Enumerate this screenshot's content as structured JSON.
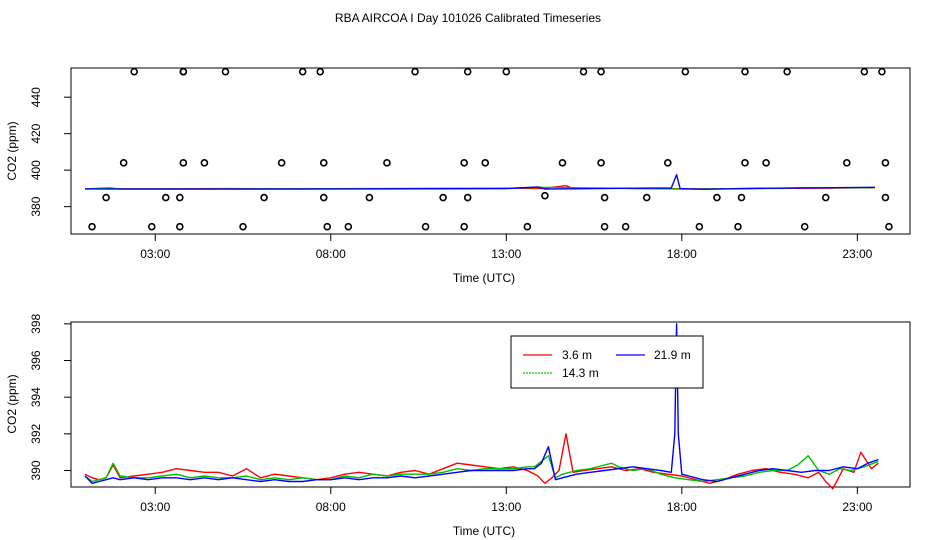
{
  "title": "RBA AIRCOA I  Day 101026  Calibrated Timeseries",
  "colors": {
    "height_3_6": "#ff0000",
    "height_14_3": "#00c000",
    "height_21_9": "#0000ff",
    "markers": "#000000",
    "background": "#ffffff"
  },
  "chart_data": [
    {
      "type": "line",
      "title": "",
      "xlabel": "Time (UTC)",
      "ylabel": "CO2 (ppm)",
      "x_unit": "hours (UTC)",
      "xlim": [
        0.6,
        24.5
      ],
      "ylim": [
        365,
        456
      ],
      "xticks": [
        3,
        8,
        13,
        18,
        23
      ],
      "xtick_labels": [
        "03:00",
        "08:00",
        "13:00",
        "18:00",
        "23:00"
      ],
      "yticks": [
        380,
        400,
        420,
        440
      ],
      "ytick_labels": [
        "380",
        "400",
        "420",
        "440"
      ],
      "grid": false,
      "legend": "none",
      "series": [
        {
          "color": "#ff0000",
          "x": [
            1,
            3,
            5,
            7,
            9,
            11,
            13,
            14.0,
            14.7,
            14.9,
            16,
            17.5,
            18.6,
            20,
            22,
            23.5
          ],
          "y": [
            389.8,
            389.8,
            389.9,
            389.8,
            389.9,
            390.0,
            390.1,
            389.9,
            391.5,
            390.0,
            390.1,
            389.9,
            389.7,
            390.0,
            390.1,
            390.4
          ]
        },
        {
          "color": "#00c000",
          "x": [
            1,
            1.7,
            2,
            5,
            9,
            13,
            14.0,
            16,
            18,
            20,
            21.5,
            23.5
          ],
          "y": [
            389.7,
            390.3,
            389.7,
            389.7,
            389.8,
            390.0,
            390.6,
            390.1,
            389.6,
            389.9,
            390.3,
            390.4
          ]
        },
        {
          "color": "#0000ff",
          "x": [
            1,
            3,
            5,
            9,
            13,
            13.9,
            14.1,
            16,
            17.7,
            17.85,
            17.95,
            18.6,
            20,
            23.5
          ],
          "y": [
            389.7,
            389.6,
            389.6,
            389.7,
            389.9,
            390.8,
            389.6,
            390.0,
            390.2,
            397.5,
            389.9,
            389.5,
            390.0,
            390.6
          ]
        },
        {
          "name": "markers",
          "style": "open circles",
          "color": "#000000",
          "x": [
            1.2,
            1.6,
            2.1,
            2.4,
            2.9,
            3.3,
            3.7,
            3.7,
            3.8,
            3.8,
            3.8,
            4.4,
            5.0,
            5.5,
            6.1,
            6.6,
            7.2,
            7.7,
            7.8,
            7.8,
            7.9,
            8.5,
            9.1,
            9.6,
            10.4,
            10.7,
            11.2,
            11.8,
            11.8,
            11.9,
            11.9,
            12.4,
            13.0,
            13.6,
            14.1,
            14.6,
            15.2,
            15.7,
            15.7,
            15.8,
            15.8,
            16.4,
            17.0,
            17.6,
            18.1,
            18.5,
            19.0,
            19.6,
            19.7,
            19.8,
            19.8,
            20.4,
            21.0,
            21.5,
            22.1,
            22.7,
            23.2,
            23.7,
            23.8,
            23.8,
            23.9
          ],
          "y": [
            369,
            385,
            404,
            454,
            369,
            385,
            369,
            385,
            404,
            454,
            454,
            404,
            454,
            369,
            385,
            404,
            454,
            454,
            404,
            385,
            369,
            369,
            385,
            404,
            454,
            369,
            385,
            404,
            369,
            385,
            454,
            404,
            454,
            369,
            386,
            404,
            454,
            454,
            404,
            385,
            369,
            369,
            385,
            404,
            454,
            369,
            385,
            369,
            385,
            404,
            454,
            404,
            454,
            369,
            385,
            404,
            454,
            454,
            404,
            385,
            369
          ]
        }
      ]
    },
    {
      "type": "line",
      "title": "",
      "xlabel": "Time (UTC)",
      "ylabel": "CO2 (ppm)",
      "x_unit": "hours (UTC)",
      "xlim": [
        0.6,
        24.5
      ],
      "ylim": [
        389.1,
        398.1
      ],
      "xticks": [
        3,
        8,
        13,
        18,
        23
      ],
      "xtick_labels": [
        "03:00",
        "08:00",
        "13:00",
        "18:00",
        "23:00"
      ],
      "yticks": [
        390,
        392,
        394,
        396,
        398
      ],
      "ytick_labels": [
        "390",
        "392",
        "394",
        "396",
        "398"
      ],
      "grid": false,
      "legend": "top-center",
      "series": [
        {
          "name": "3.6 m",
          "color": "#ff0000",
          "x": [
            1.0,
            1.2,
            1.4,
            1.6,
            1.8,
            2.0,
            2.4,
            2.8,
            3.2,
            3.6,
            4.0,
            4.4,
            4.8,
            5.2,
            5.6,
            6.0,
            6.4,
            6.8,
            7.2,
            7.6,
            8.0,
            8.4,
            8.8,
            9.2,
            9.6,
            10.0,
            10.4,
            10.8,
            11.2,
            11.6,
            12.0,
            12.4,
            12.8,
            13.2,
            13.6,
            13.9,
            14.1,
            14.3,
            14.5,
            14.7,
            14.9,
            15.2,
            15.6,
            16.0,
            16.4,
            16.8,
            17.2,
            17.6,
            18.0,
            18.4,
            18.8,
            19.2,
            19.6,
            20.0,
            20.4,
            20.8,
            21.2,
            21.6,
            21.9,
            22.1,
            22.3,
            22.6,
            22.9,
            23.1,
            23.4,
            23.6
          ],
          "y": [
            389.8,
            389.6,
            389.5,
            389.6,
            390.3,
            389.6,
            389.7,
            389.8,
            389.9,
            390.1,
            390.0,
            389.9,
            389.9,
            389.7,
            390.1,
            389.6,
            389.8,
            389.7,
            389.6,
            389.5,
            389.6,
            389.8,
            389.9,
            389.8,
            389.7,
            389.9,
            390.0,
            389.8,
            390.1,
            390.4,
            390.3,
            390.2,
            390.1,
            390.2,
            390.0,
            389.7,
            389.3,
            389.6,
            390.0,
            392.0,
            389.9,
            390.0,
            390.1,
            390.2,
            390.0,
            390.1,
            389.9,
            389.8,
            389.7,
            389.5,
            389.3,
            389.5,
            389.8,
            390.0,
            390.1,
            389.9,
            389.8,
            389.6,
            389.9,
            389.4,
            389.0,
            390.1,
            389.9,
            391.0,
            390.1,
            390.4
          ]
        },
        {
          "name": "14.3 m",
          "color": "#00c000",
          "x": [
            1.0,
            1.2,
            1.4,
            1.6,
            1.8,
            2.0,
            2.4,
            2.8,
            3.2,
            3.6,
            4.0,
            4.4,
            4.8,
            5.2,
            5.6,
            6.0,
            6.4,
            6.8,
            7.2,
            7.6,
            8.0,
            8.4,
            8.8,
            9.2,
            9.6,
            10.0,
            10.4,
            10.8,
            11.2,
            11.6,
            12.0,
            12.4,
            12.8,
            13.2,
            13.6,
            13.8,
            14.0,
            14.2,
            14.4,
            14.6,
            15.0,
            15.4,
            15.8,
            16.0,
            16.2,
            16.6,
            17.0,
            17.4,
            17.8,
            18.2,
            18.6,
            19.0,
            19.4,
            19.8,
            20.2,
            20.6,
            21.0,
            21.3,
            21.6,
            21.9,
            22.2,
            22.5,
            22.8,
            23.2,
            23.6
          ],
          "y": [
            389.7,
            389.4,
            389.5,
            389.6,
            390.4,
            389.7,
            389.6,
            389.6,
            389.7,
            389.8,
            389.6,
            389.7,
            389.6,
            389.6,
            389.7,
            389.5,
            389.6,
            389.5,
            389.6,
            389.5,
            389.5,
            389.7,
            389.6,
            389.8,
            389.7,
            389.8,
            389.8,
            389.8,
            389.9,
            390.1,
            390.0,
            390.1,
            390.1,
            390.1,
            390.2,
            390.2,
            390.5,
            390.8,
            389.6,
            389.8,
            390.0,
            390.1,
            390.3,
            390.4,
            390.2,
            390.0,
            390.1,
            389.8,
            389.6,
            389.5,
            389.4,
            389.5,
            389.6,
            389.7,
            389.9,
            390.0,
            390.0,
            390.3,
            390.8,
            390.0,
            389.8,
            390.1,
            390.0,
            390.2,
            390.5
          ]
        },
        {
          "name": "21.9 m",
          "color": "#0000ff",
          "x": [
            1.0,
            1.2,
            1.4,
            1.6,
            1.8,
            2.0,
            2.4,
            2.8,
            3.2,
            3.6,
            4.0,
            4.4,
            4.8,
            5.2,
            5.6,
            6.0,
            6.4,
            6.8,
            7.2,
            7.6,
            8.0,
            8.4,
            8.8,
            9.2,
            9.6,
            10.0,
            10.4,
            10.8,
            11.2,
            11.6,
            12.0,
            12.4,
            12.8,
            13.2,
            13.6,
            13.8,
            14.0,
            14.2,
            14.4,
            14.6,
            15.0,
            15.4,
            15.8,
            16.2,
            16.6,
            17.0,
            17.4,
            17.7,
            17.8,
            17.85,
            17.9,
            18.0,
            18.2,
            18.6,
            19.0,
            19.4,
            19.8,
            20.2,
            20.6,
            21.0,
            21.4,
            21.8,
            22.2,
            22.6,
            23.0,
            23.3,
            23.6
          ],
          "y": [
            389.7,
            389.3,
            389.4,
            389.5,
            389.6,
            389.5,
            389.6,
            389.5,
            389.6,
            389.6,
            389.5,
            389.6,
            389.5,
            389.6,
            389.5,
            389.4,
            389.5,
            389.4,
            389.4,
            389.5,
            389.5,
            389.6,
            389.5,
            389.6,
            389.6,
            389.7,
            389.6,
            389.7,
            389.8,
            389.9,
            390.0,
            390.0,
            390.0,
            390.0,
            390.1,
            390.1,
            390.4,
            391.3,
            389.5,
            389.6,
            389.8,
            389.9,
            390.0,
            390.1,
            390.2,
            390.1,
            390.0,
            389.9,
            392.0,
            398.0,
            392.0,
            389.8,
            389.7,
            389.5,
            389.4,
            389.6,
            389.8,
            390.0,
            390.1,
            390.0,
            389.9,
            390.0,
            390.0,
            390.2,
            390.1,
            390.4,
            390.6
          ]
        }
      ]
    }
  ]
}
